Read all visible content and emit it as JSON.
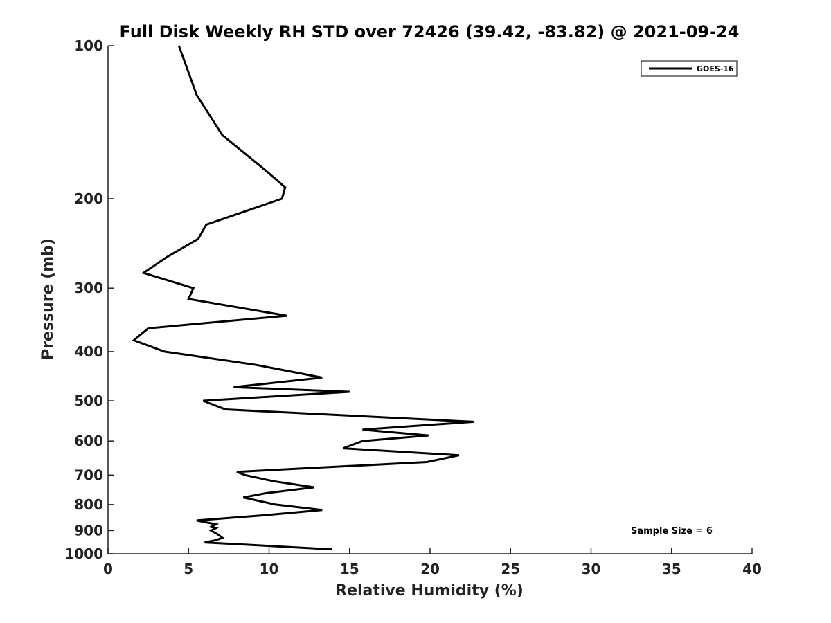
{
  "chart_data": {
    "type": "line",
    "title": "Full Disk Weekly RH STD over 72426 (39.42, -83.82) @ 2021-09-24",
    "xlabel": "Relative Humidity (%)",
    "ylabel": "Pressure (mb)",
    "xlim": [
      0,
      40
    ],
    "ylim": [
      100,
      1000
    ],
    "y_scale": "log",
    "y_reversed": true,
    "x_ticks": [
      0,
      5,
      10,
      15,
      20,
      25,
      30,
      35,
      40
    ],
    "y_ticks": [
      100,
      200,
      300,
      400,
      500,
      600,
      700,
      800,
      900,
      1000
    ],
    "grid": false,
    "legend_position": "top-right",
    "annotation": "Sample Size = 6",
    "series": [
      {
        "name": "GOES-16",
        "color": "#000000",
        "points": [
          [
            4.4,
            100
          ],
          [
            5.5,
            125
          ],
          [
            7.1,
            150
          ],
          [
            9.7,
            175
          ],
          [
            11.0,
            190
          ],
          [
            10.8,
            200
          ],
          [
            6.1,
            225
          ],
          [
            5.6,
            240
          ],
          [
            3.7,
            260
          ],
          [
            2.2,
            280
          ],
          [
            5.3,
            300
          ],
          [
            5.0,
            315
          ],
          [
            11.1,
            340
          ],
          [
            2.5,
            360
          ],
          [
            1.6,
            380
          ],
          [
            3.5,
            400
          ],
          [
            9.2,
            425
          ],
          [
            13.3,
            450
          ],
          [
            7.8,
            470
          ],
          [
            15.0,
            480
          ],
          [
            5.9,
            500
          ],
          [
            7.3,
            520
          ],
          [
            22.7,
            550
          ],
          [
            15.8,
            570
          ],
          [
            19.9,
            585
          ],
          [
            15.8,
            600
          ],
          [
            14.6,
            620
          ],
          [
            21.8,
            640
          ],
          [
            19.8,
            660
          ],
          [
            8.0,
            690
          ],
          [
            8.5,
            700
          ],
          [
            10.3,
            720
          ],
          [
            12.8,
            740
          ],
          [
            9.8,
            760
          ],
          [
            8.4,
            775
          ],
          [
            10.4,
            800
          ],
          [
            13.3,
            820
          ],
          [
            9.7,
            840
          ],
          [
            5.5,
            860
          ],
          [
            6.7,
            875
          ],
          [
            6.4,
            885
          ],
          [
            6.7,
            890
          ],
          [
            6.4,
            900
          ],
          [
            6.8,
            915
          ],
          [
            7.1,
            930
          ],
          [
            6.7,
            940
          ],
          [
            6.0,
            950
          ],
          [
            13.9,
            980
          ]
        ]
      }
    ]
  }
}
